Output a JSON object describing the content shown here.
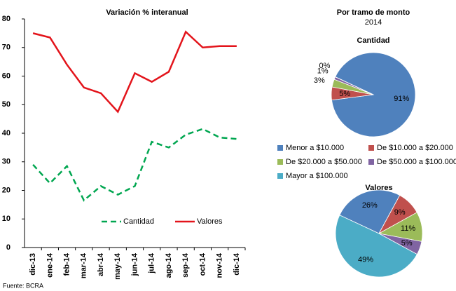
{
  "chart_data": [
    {
      "type": "line",
      "title": "Variación % interanual",
      "categories": [
        "dic-13",
        "ene-14",
        "feb-14",
        "mar-14",
        "abr-14",
        "may-14",
        "jun-14",
        "jul-14",
        "ago-14",
        "sep-14",
        "oct-14",
        "nov-14",
        "dic-14"
      ],
      "series": [
        {
          "name": "Cantidad",
          "color": "#00a650",
          "dashed": true,
          "values": [
            29,
            22.5,
            28.5,
            16.5,
            21.5,
            18.5,
            21.5,
            37,
            35,
            39.5,
            41.5,
            38.5,
            38
          ]
        },
        {
          "name": "Valores",
          "color": "#e3141b",
          "dashed": false,
          "values": [
            75,
            73.5,
            64,
            56,
            54,
            47.5,
            61,
            58,
            61.5,
            75.5,
            70,
            70.5,
            70.5
          ]
        }
      ],
      "ylim": [
        0,
        80
      ],
      "yticks": [
        0,
        10,
        20,
        30,
        40,
        50,
        60,
        70,
        80
      ],
      "grid": false
    },
    {
      "type": "pie",
      "title": "Por tramo de monto",
      "subtitle": "2014",
      "categories": [
        "Menor a $10.000",
        "De $10.000 a $20.000",
        "De $20.000 a $50.000",
        "De $50.000 a $100.000",
        "Mayor a $100.000"
      ],
      "colors": [
        "#4f81bd",
        "#c0504d",
        "#9bbb59",
        "#8064a2",
        "#4bacc6"
      ],
      "series": [
        {
          "name": "Cantidad",
          "values": [
            91,
            5,
            3,
            1,
            0
          ],
          "value_labels": [
            "91%",
            "5%",
            "3%",
            "1%",
            "0%"
          ]
        },
        {
          "name": "Valores",
          "values": [
            26,
            9,
            11,
            5,
            49
          ],
          "value_labels": [
            "26%",
            "9%",
            "11%",
            "5%",
            "49%"
          ]
        }
      ]
    }
  ],
  "source": "Fuente: BCRA"
}
